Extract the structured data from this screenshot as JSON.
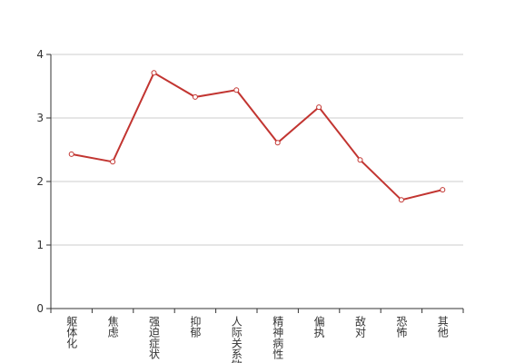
{
  "chart_data": {
    "type": "line",
    "categories": [
      "躯体化",
      "焦虑",
      "强迫症状",
      "抑郁",
      "人际关系敏感",
      "精神病性",
      "偏执",
      "敌对",
      "恐怖",
      "其他"
    ],
    "series": [
      {
        "name": null,
        "color": "#c23531",
        "values": [
          2.43,
          2.31,
          3.71,
          3.33,
          3.44,
          2.61,
          3.17,
          2.34,
          1.71,
          1.87
        ]
      }
    ],
    "ylim": [
      0,
      4
    ],
    "yticks": [
      0,
      1,
      2,
      3,
      4
    ],
    "grid": true
  }
}
